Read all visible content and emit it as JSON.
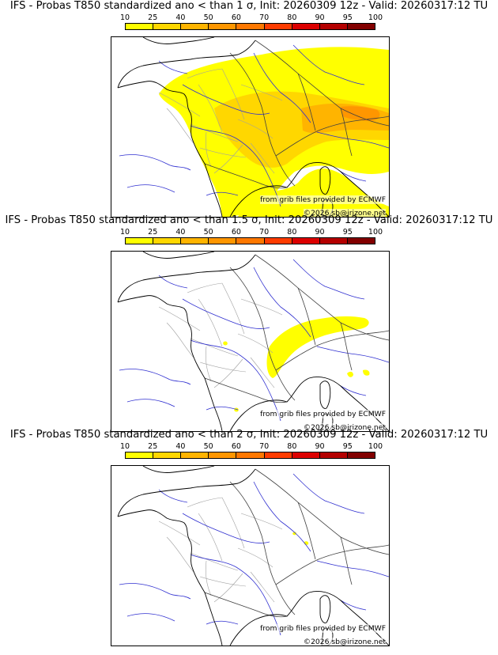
{
  "colorbar": {
    "ticks": [
      "10",
      "25",
      "40",
      "50",
      "60",
      "70",
      "80",
      "90",
      "95",
      "100"
    ],
    "colors": [
      "#ffff00",
      "#ffd700",
      "#ffb400",
      "#ff9600",
      "#ff7800",
      "#ff3c00",
      "#dc0000",
      "#b40000",
      "#820000"
    ]
  },
  "panels": [
    {
      "title": "IFS - Probas T850  standardized ano < than 1 σ, Init: 20260309 12z - Valid: 20260317:12 TU",
      "credit_source": "from grib files provided by ECMWF",
      "credit_copyright": "©2026 sb@irizone.net",
      "coverage": "large"
    },
    {
      "title": "IFS - Probas T850  standardized ano < than 1.5 σ, Init: 20260309 12z - Valid: 20260317:12 TU",
      "credit_source": "from grib files provided by ECMWF",
      "credit_copyright": "©2026 sb@irizone.net",
      "coverage": "medium"
    },
    {
      "title": "IFS - Probas T850  standardized ano < than 2 σ, Init: 20260309 12z - Valid: 20260317:12 TU",
      "credit_source": "from grib files provided by ECMWF",
      "credit_copyright": "©2026 sb@irizone.net",
      "coverage": "minimal"
    }
  ]
}
